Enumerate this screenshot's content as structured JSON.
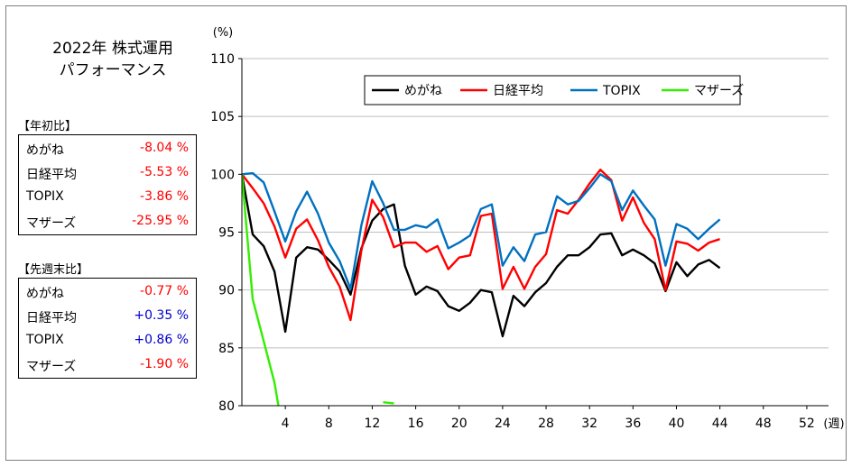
{
  "title_line1": "2022年 株式運用",
  "title_line2": "パフォーマンス",
  "ytd": {
    "label": "【年初比】",
    "rows": [
      {
        "name": "めがね",
        "value": "-8.04 %",
        "sign": "neg"
      },
      {
        "name": "日経平均",
        "value": "-5.53 %",
        "sign": "neg"
      },
      {
        "name": "TOPIX",
        "value": "-3.86 %",
        "sign": "neg"
      },
      {
        "name": "マザーズ",
        "value": "-25.95 %",
        "sign": "neg"
      }
    ]
  },
  "weekly": {
    "label": "【先週末比】",
    "rows": [
      {
        "name": "めがね",
        "value": "-0.77 %",
        "sign": "neg"
      },
      {
        "name": "日経平均",
        "value": "+0.35 %",
        "sign": "pos"
      },
      {
        "name": "TOPIX",
        "value": "+0.86 %",
        "sign": "pos"
      },
      {
        "name": "マザーズ",
        "value": "-1.90 %",
        "sign": "neg"
      }
    ]
  },
  "chart_data": {
    "type": "line",
    "ylabel": "(%)",
    "xlabel": "(週)",
    "xlim": [
      0,
      54
    ],
    "ylim": [
      80,
      110
    ],
    "yticks": [
      80,
      85,
      90,
      95,
      100,
      105,
      110
    ],
    "xticks": [
      4,
      8,
      12,
      16,
      20,
      24,
      28,
      32,
      36,
      40,
      44,
      48,
      52
    ],
    "legend_position": "top",
    "series": [
      {
        "name": "めがね",
        "color": "#000000",
        "x": [
          0,
          1,
          2,
          3,
          4,
          5,
          6,
          7,
          8,
          9,
          10,
          11,
          12,
          13,
          14,
          15,
          16,
          17,
          18,
          19,
          20,
          21,
          22,
          23,
          24,
          25,
          26,
          27,
          28,
          29,
          30,
          31,
          32,
          33,
          34,
          35,
          36,
          37,
          38,
          39,
          40,
          41,
          42,
          43,
          44
        ],
        "y": [
          100,
          94.8,
          93.8,
          91.6,
          86.4,
          92.8,
          93.7,
          93.5,
          92.6,
          91.6,
          89.6,
          93.6,
          96.0,
          97.0,
          97.4,
          92.1,
          89.6,
          90.3,
          89.9,
          88.6,
          88.2,
          88.9,
          90.0,
          89.8,
          86.0,
          89.5,
          88.6,
          89.8,
          90.6,
          92.0,
          93.0,
          93.0,
          93.7,
          94.8,
          94.9,
          93.0,
          93.5,
          93.0,
          92.3,
          89.9,
          92.4,
          91.2,
          92.2,
          92.6,
          91.9
        ]
      },
      {
        "name": "日経平均",
        "color": "#ff0000",
        "x": [
          0,
          1,
          2,
          3,
          4,
          5,
          6,
          7,
          8,
          9,
          10,
          11,
          12,
          13,
          14,
          15,
          16,
          17,
          18,
          19,
          20,
          21,
          22,
          23,
          24,
          25,
          26,
          27,
          28,
          29,
          30,
          31,
          32,
          33,
          34,
          35,
          36,
          37,
          38,
          39,
          40,
          41,
          42,
          43,
          44
        ],
        "y": [
          100,
          98.8,
          97.5,
          95.5,
          92.8,
          95.3,
          96.1,
          94.3,
          92.0,
          90.3,
          87.4,
          93.4,
          97.8,
          96.3,
          93.7,
          94.1,
          94.1,
          93.3,
          93.8,
          91.8,
          92.8,
          93.0,
          96.4,
          96.6,
          90.1,
          92.0,
          90.1,
          92.0,
          93.1,
          96.9,
          96.6,
          97.8,
          99.2,
          100.4,
          99.5,
          96.0,
          98.0,
          95.8,
          94.4,
          90.0,
          94.2,
          94.0,
          93.4,
          94.1,
          94.4
        ]
      },
      {
        "name": "TOPIX",
        "color": "#0070c0",
        "x": [
          0,
          1,
          2,
          3,
          4,
          5,
          6,
          7,
          8,
          9,
          10,
          11,
          12,
          13,
          14,
          15,
          16,
          17,
          18,
          19,
          20,
          21,
          22,
          23,
          24,
          25,
          26,
          27,
          28,
          29,
          30,
          31,
          32,
          33,
          34,
          35,
          36,
          37,
          38,
          39,
          40,
          41,
          42,
          43,
          44
        ],
        "y": [
          100,
          100.1,
          99.3,
          96.8,
          94.2,
          96.8,
          98.5,
          96.6,
          94.1,
          92.5,
          90.1,
          95.6,
          99.4,
          97.5,
          95.2,
          95.2,
          95.6,
          95.4,
          96.1,
          93.6,
          94.1,
          94.7,
          97.0,
          97.4,
          92.1,
          93.7,
          92.5,
          94.8,
          95.0,
          98.1,
          97.4,
          97.7,
          98.8,
          100.0,
          99.4,
          96.9,
          98.6,
          97.3,
          96.1,
          92.1,
          95.7,
          95.3,
          94.4,
          95.3,
          96.1
        ]
      },
      {
        "name": "マザーズ",
        "color": "#33ee00",
        "x": [
          0,
          1,
          2,
          3,
          4,
          13,
          14
        ],
        "y": [
          100,
          89.2,
          85.6,
          82.0,
          76.5,
          80.3,
          80.2
        ]
      }
    ]
  }
}
